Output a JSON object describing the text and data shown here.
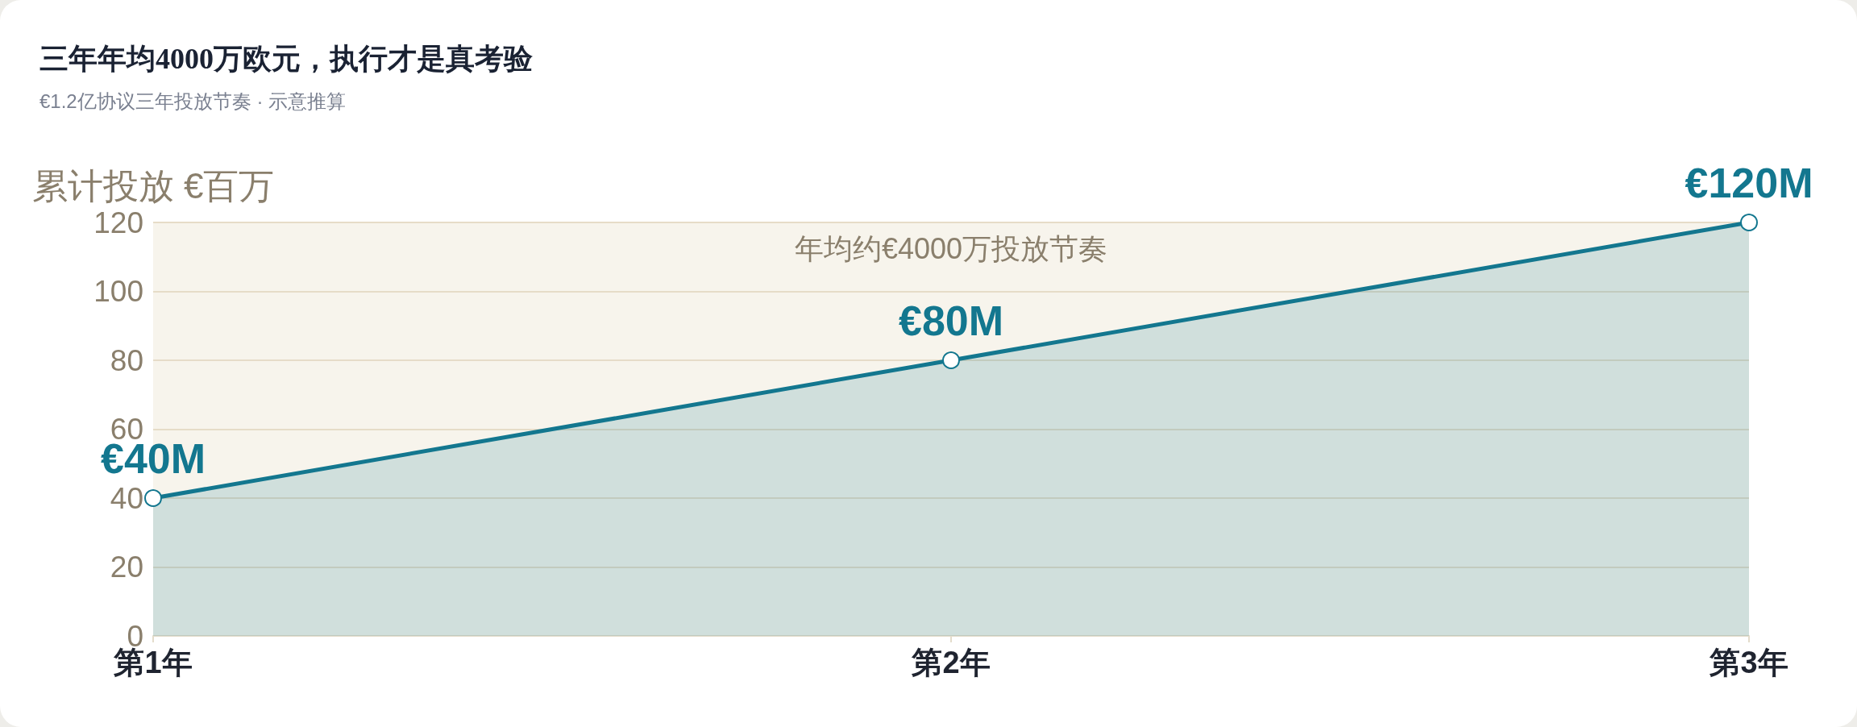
{
  "chart_data": {
    "type": "area",
    "title": "三年年均4000万欧元，执行才是真考验",
    "subtitle": "€1.2亿协议三年投放节奏 · 示意推算",
    "ylabel": "累计投放 €百万",
    "categories": [
      "第1年",
      "第2年",
      "第3年"
    ],
    "values": [
      40,
      80,
      120
    ],
    "color": "#13778f",
    "value_labels": [
      "€40M",
      "€80M",
      "€120M"
    ],
    "ylim": [
      0,
      120
    ],
    "yticks": [
      0,
      20,
      40,
      60,
      80,
      100,
      120
    ],
    "grid": "y",
    "marker": "circle",
    "line_style": "solid",
    "annotations": [
      "年均约€4000万投放节奏"
    ]
  }
}
